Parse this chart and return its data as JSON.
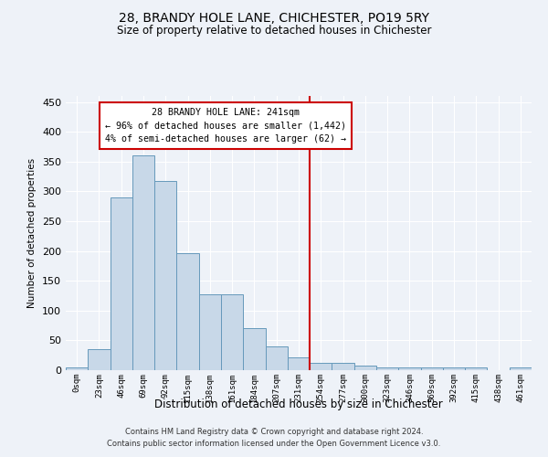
{
  "title": "28, BRANDY HOLE LANE, CHICHESTER, PO19 5RY",
  "subtitle": "Size of property relative to detached houses in Chichester",
  "xlabel": "Distribution of detached houses by size in Chichester",
  "ylabel": "Number of detached properties",
  "bar_labels": [
    "0sqm",
    "23sqm",
    "46sqm",
    "69sqm",
    "92sqm",
    "115sqm",
    "138sqm",
    "161sqm",
    "184sqm",
    "207sqm",
    "231sqm",
    "254sqm",
    "277sqm",
    "300sqm",
    "323sqm",
    "346sqm",
    "369sqm",
    "392sqm",
    "415sqm",
    "438sqm",
    "461sqm"
  ],
  "bar_heights": [
    5,
    35,
    290,
    360,
    317,
    197,
    128,
    128,
    70,
    40,
    22,
    12,
    12,
    7,
    5,
    5,
    5,
    5,
    5,
    0,
    5
  ],
  "bar_color": "#c8d8e8",
  "bar_edge_color": "#6699bb",
  "vline_x": 10.5,
  "vline_color": "#cc0000",
  "annotation_title": "28 BRANDY HOLE LANE: 241sqm",
  "annotation_line1": "← 96% of detached houses are smaller (1,442)",
  "annotation_line2": "4% of semi-detached houses are larger (62) →",
  "annotation_box_color": "#cc0000",
  "ylim": [
    0,
    460
  ],
  "yticks": [
    0,
    50,
    100,
    150,
    200,
    250,
    300,
    350,
    400,
    450
  ],
  "footer_line1": "Contains HM Land Registry data © Crown copyright and database right 2024.",
  "footer_line2": "Contains public sector information licensed under the Open Government Licence v3.0.",
  "bg_color": "#eef2f8",
  "grid_color": "#ffffff"
}
